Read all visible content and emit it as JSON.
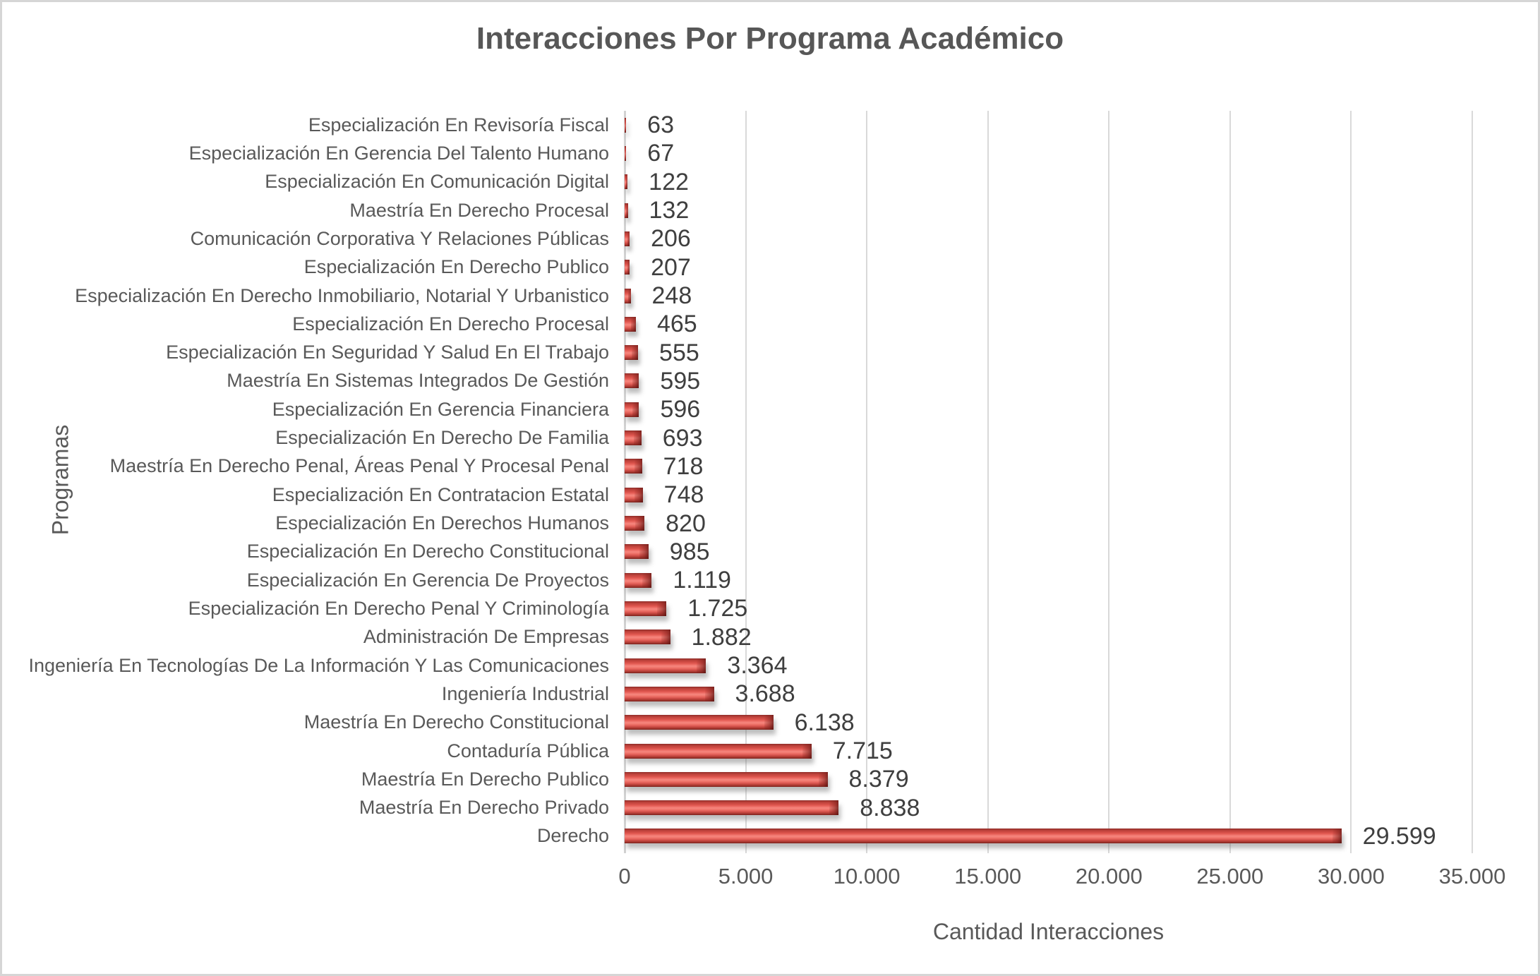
{
  "frame": {
    "background": "#ffffff",
    "border_color": "#d6d6d6"
  },
  "chart_data": {
    "type": "bar",
    "orientation": "horizontal",
    "title": "Interacciones Por Programa Académico",
    "xlabel": "Cantidad Interacciones",
    "ylabel": "Programas",
    "xlim": [
      0,
      35000
    ],
    "grid": "vertical",
    "legend": "none",
    "bar_color": "#e0564f",
    "bar_color_light": "#f6867e",
    "bar_color_dark": "#8e2e29",
    "text_color": "#595959",
    "value_text_color": "#3f3f3f",
    "gridline_color": "#d9d9d9",
    "xticks": [
      {
        "value": 0,
        "label": "0"
      },
      {
        "value": 5000,
        "label": "5.000"
      },
      {
        "value": 10000,
        "label": "10.000"
      },
      {
        "value": 15000,
        "label": "15.000"
      },
      {
        "value": 20000,
        "label": "20.000"
      },
      {
        "value": 25000,
        "label": "25.000"
      },
      {
        "value": 30000,
        "label": "30.000"
      },
      {
        "value": 35000,
        "label": "35.000"
      }
    ],
    "bars": [
      {
        "category": "Especialización En Revisoría Fiscal",
        "value": 63,
        "label": "63"
      },
      {
        "category": "Especialización En Gerencia Del Talento Humano",
        "value": 67,
        "label": "67"
      },
      {
        "category": "Especialización En Comunicación Digital",
        "value": 122,
        "label": "122"
      },
      {
        "category": "Maestría En Derecho Procesal",
        "value": 132,
        "label": "132"
      },
      {
        "category": "Comunicación Corporativa Y Relaciones Públicas",
        "value": 206,
        "label": "206"
      },
      {
        "category": "Especialización En Derecho Publico",
        "value": 207,
        "label": "207"
      },
      {
        "category": "Especialización En Derecho Inmobiliario, Notarial Y Urbanistico",
        "value": 248,
        "label": "248"
      },
      {
        "category": "Especialización En Derecho Procesal",
        "value": 465,
        "label": "465"
      },
      {
        "category": "Especialización En Seguridad Y Salud En El Trabajo",
        "value": 555,
        "label": "555"
      },
      {
        "category": "Maestría En Sistemas Integrados De Gestión",
        "value": 595,
        "label": "595"
      },
      {
        "category": "Especialización En Gerencia Financiera",
        "value": 596,
        "label": "596"
      },
      {
        "category": "Especialización En Derecho De Familia",
        "value": 693,
        "label": "693"
      },
      {
        "category": "Maestría En Derecho Penal, Áreas Penal Y Procesal Penal",
        "value": 718,
        "label": "718"
      },
      {
        "category": "Especialización En Contratacion Estatal",
        "value": 748,
        "label": "748"
      },
      {
        "category": "Especialización En Derechos Humanos",
        "value": 820,
        "label": "820"
      },
      {
        "category": "Especialización En Derecho Constitucional",
        "value": 985,
        "label": "985"
      },
      {
        "category": "Especialización En Gerencia De Proyectos",
        "value": 1119,
        "label": "1.119"
      },
      {
        "category": "Especialización En Derecho Penal Y Criminología",
        "value": 1725,
        "label": "1.725"
      },
      {
        "category": "Administración De Empresas",
        "value": 1882,
        "label": "1.882"
      },
      {
        "category": "Ingeniería En Tecnologías De La Información Y Las Comunicaciones",
        "value": 3364,
        "label": "3.364"
      },
      {
        "category": "Ingeniería Industrial",
        "value": 3688,
        "label": "3.688"
      },
      {
        "category": "Maestría En Derecho Constitucional",
        "value": 6138,
        "label": "6.138"
      },
      {
        "category": "Contaduría Pública",
        "value": 7715,
        "label": "7.715"
      },
      {
        "category": "Maestría En Derecho Publico",
        "value": 8379,
        "label": "8.379"
      },
      {
        "category": "Maestría En Derecho Privado",
        "value": 8838,
        "label": "8.838"
      },
      {
        "category": "Derecho",
        "value": 29599,
        "label": "29.599"
      }
    ]
  }
}
